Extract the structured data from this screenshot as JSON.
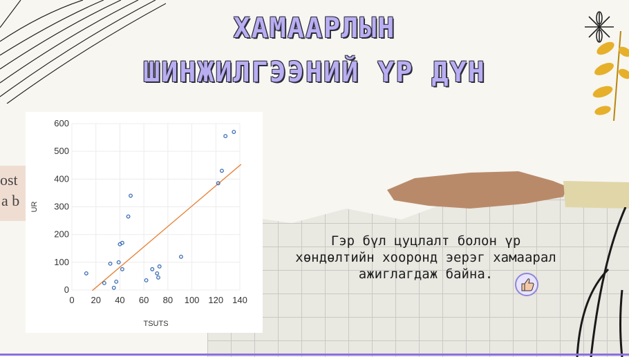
{
  "title": {
    "line1": "ХАМААРЛЫН",
    "line2": "ШИНЖИЛГЭЭНИЙ ҮР ДҮН"
  },
  "caption": "Гэр бүл цуцлалт болон үр\nхөндөлтийн хооронд эерэг хамаарал\nажиглагдаж байна.",
  "decor": {
    "left_paper_text": [
      "ost",
      "a b"
    ],
    "colors": {
      "title_fill": "#b9aef2",
      "title_outline": "#2c2c3a",
      "marker": "#3b6db5",
      "trendline": "#e8833a",
      "accent_line": "#8b6fe0",
      "leaf": "#e6b02a",
      "tape": "#b98a6a"
    },
    "icons": [
      "flower-sketch-icon",
      "leaf-branch-icon",
      "thumbs-up-icon"
    ]
  },
  "chart_data": {
    "type": "scatter",
    "xlabel": "TSUTS",
    "ylabel": "UR",
    "xlim": [
      0,
      140
    ],
    "ylim": [
      0,
      600
    ],
    "xticks": [
      0,
      20,
      40,
      60,
      80,
      100,
      120,
      140
    ],
    "yticks": [
      0,
      100,
      200,
      300,
      400,
      500,
      600
    ],
    "grid": true,
    "points": [
      [
        12,
        60
      ],
      [
        27,
        25
      ],
      [
        32,
        95
      ],
      [
        35,
        8
      ],
      [
        37,
        30
      ],
      [
        39,
        100
      ],
      [
        40,
        165
      ],
      [
        42,
        170
      ],
      [
        42,
        75
      ],
      [
        47,
        265
      ],
      [
        49,
        340
      ],
      [
        62,
        35
      ],
      [
        67,
        75
      ],
      [
        71,
        60
      ],
      [
        72,
        45
      ],
      [
        73,
        85
      ],
      [
        91,
        120
      ],
      [
        122,
        385
      ],
      [
        125,
        430
      ],
      [
        128,
        555
      ],
      [
        135,
        570
      ]
    ],
    "trendline": {
      "x": [
        17,
        141
      ],
      "y": [
        -2,
        453
      ]
    }
  }
}
